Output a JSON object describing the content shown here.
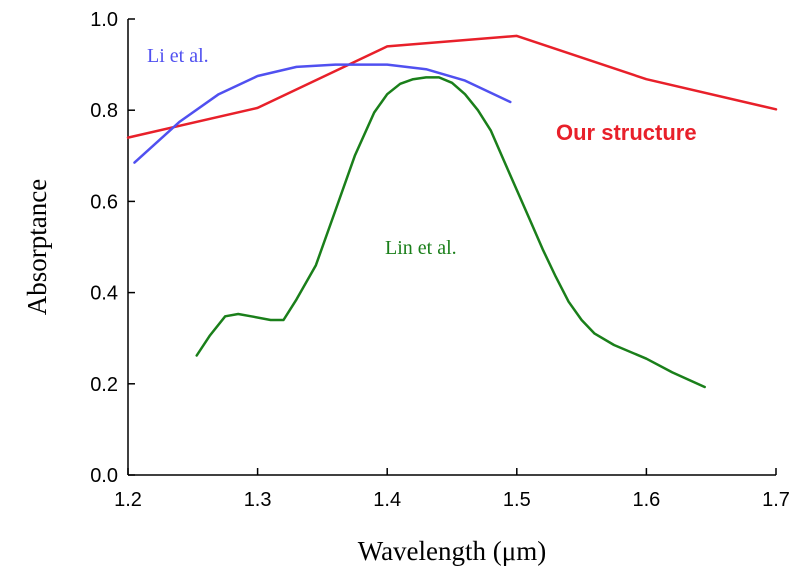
{
  "chart_data": {
    "type": "line",
    "title": "",
    "xlabel": "Wavelength (μm)",
    "ylabel": "Absorptance",
    "xlim": [
      1.2,
      1.7
    ],
    "ylim": [
      0.0,
      1.0
    ],
    "grid": false,
    "x_ticks": [
      1.2,
      1.3,
      1.4,
      1.5,
      1.6,
      1.7
    ],
    "x_tick_labels": [
      "1.2",
      "1.3",
      "1.4",
      "1.5",
      "1.6",
      "1.7"
    ],
    "y_ticks": [
      0.0,
      0.2,
      0.4,
      0.6,
      0.8,
      1.0
    ],
    "y_tick_labels": [
      "0.0",
      "0.2",
      "0.4",
      "0.6",
      "0.8",
      "1.0"
    ],
    "series": [
      {
        "name": "Our structure",
        "color": "#e8202a",
        "x": [
          1.2,
          1.3,
          1.4,
          1.5,
          1.6,
          1.7
        ],
        "y": [
          0.74,
          0.805,
          0.94,
          0.963,
          0.868,
          0.802
        ]
      },
      {
        "name": "Li et al.",
        "color": "#5050f0",
        "x": [
          1.205,
          1.24,
          1.27,
          1.3,
          1.33,
          1.36,
          1.4,
          1.43,
          1.46,
          1.495
        ],
        "y": [
          0.685,
          0.775,
          0.835,
          0.875,
          0.895,
          0.9,
          0.9,
          0.89,
          0.865,
          0.818
        ]
      },
      {
        "name": "Lin et al.",
        "color": "#1a7f1a",
        "x": [
          1.253,
          1.263,
          1.275,
          1.285,
          1.295,
          1.31,
          1.32,
          1.33,
          1.345,
          1.36,
          1.375,
          1.39,
          1.4,
          1.41,
          1.42,
          1.43,
          1.44,
          1.45,
          1.46,
          1.47,
          1.48,
          1.49,
          1.5,
          1.51,
          1.52,
          1.53,
          1.54,
          1.55,
          1.56,
          1.575,
          1.6,
          1.62,
          1.645
        ],
        "y": [
          0.262,
          0.305,
          0.348,
          0.353,
          0.348,
          0.34,
          0.34,
          0.385,
          0.46,
          0.58,
          0.7,
          0.795,
          0.835,
          0.858,
          0.868,
          0.872,
          0.872,
          0.86,
          0.835,
          0.8,
          0.755,
          0.69,
          0.625,
          0.56,
          0.495,
          0.435,
          0.38,
          0.34,
          0.31,
          0.285,
          0.255,
          0.225,
          0.193
        ]
      }
    ]
  }
}
